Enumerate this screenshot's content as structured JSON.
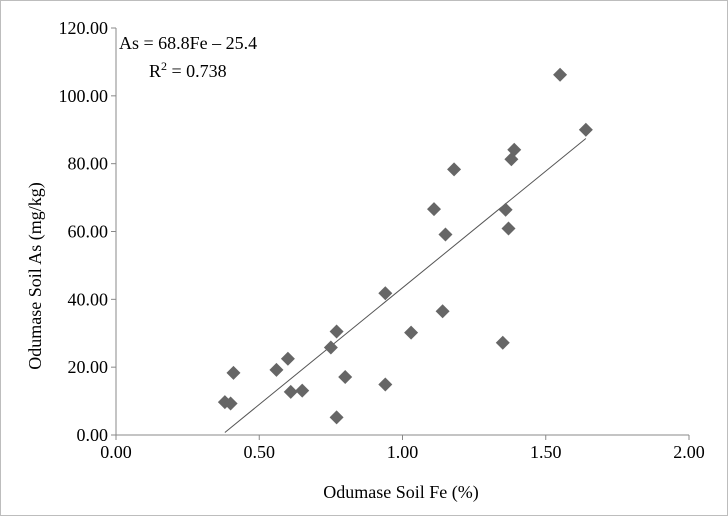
{
  "chart_data": {
    "type": "scatter",
    "xlabel": "Odumase Soil Fe (%)",
    "ylabel": "Odumase Soil As (mg/kg)",
    "xlim": [
      0,
      2
    ],
    "ylim": [
      0,
      120
    ],
    "x_ticks": [
      "0.00",
      "0.50",
      "1.00",
      "1.50",
      "2.00"
    ],
    "y_ticks": [
      "0.00",
      "20.00",
      "40.00",
      "60.00",
      "80.00",
      "100.00",
      "120.00"
    ],
    "grid": false,
    "legend": "none",
    "marker": "diamond",
    "marker_color": "#666666",
    "trendline": {
      "equation": "As = 68.8Fe – 25.4",
      "r2_label": "R",
      "r2_sup": "2",
      "r2_value": " = 0.738",
      "slope": 68.8,
      "intercept": -25.4,
      "x_range": [
        0.38,
        1.64
      ],
      "color": "#555555"
    },
    "series": [
      {
        "points": [
          {
            "x": 0.38,
            "y": 9.7
          },
          {
            "x": 0.4,
            "y": 9.3
          },
          {
            "x": 0.41,
            "y": 18.3
          },
          {
            "x": 0.56,
            "y": 19.2
          },
          {
            "x": 0.6,
            "y": 22.5
          },
          {
            "x": 0.61,
            "y": 12.7
          },
          {
            "x": 0.65,
            "y": 13.1
          },
          {
            "x": 0.75,
            "y": 25.8
          },
          {
            "x": 0.77,
            "y": 30.5
          },
          {
            "x": 0.77,
            "y": 5.2
          },
          {
            "x": 0.8,
            "y": 17.1
          },
          {
            "x": 0.94,
            "y": 41.8
          },
          {
            "x": 0.94,
            "y": 14.9
          },
          {
            "x": 1.03,
            "y": 30.2
          },
          {
            "x": 1.11,
            "y": 66.6
          },
          {
            "x": 1.14,
            "y": 36.5
          },
          {
            "x": 1.15,
            "y": 59.1
          },
          {
            "x": 1.18,
            "y": 78.3
          },
          {
            "x": 1.35,
            "y": 27.2
          },
          {
            "x": 1.36,
            "y": 66.4
          },
          {
            "x": 1.37,
            "y": 60.9
          },
          {
            "x": 1.38,
            "y": 81.3
          },
          {
            "x": 1.39,
            "y": 84.1
          },
          {
            "x": 1.55,
            "y": 106.2
          },
          {
            "x": 1.64,
            "y": 90.0
          }
        ]
      }
    ]
  }
}
